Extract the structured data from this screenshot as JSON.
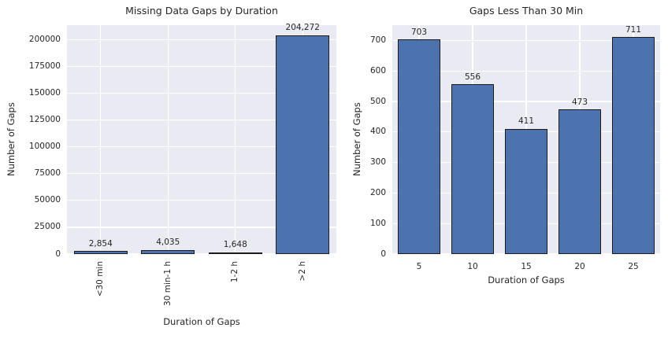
{
  "style": {
    "figure_bg": "#ffffff",
    "plot_bg": "#eaeaf2",
    "grid_color": "#ffffff",
    "bar_fill": "#4c72b0",
    "bar_edge": "#1c1c1c",
    "text_color": "#262626"
  },
  "chart_data": [
    {
      "type": "bar",
      "title": "Missing Data Gaps by Duration",
      "xlabel": "Duration of Gaps",
      "ylabel": "Number of Gaps",
      "categories": [
        "<30 min",
        "30 min-1 h",
        "1-2 h",
        ">2 h"
      ],
      "values": [
        2854,
        4035,
        1648,
        204272
      ],
      "bar_labels": [
        "2,854",
        "4,035",
        "1,648",
        "204,272"
      ],
      "yticks": [
        0,
        25000,
        50000,
        75000,
        100000,
        125000,
        150000,
        175000,
        200000
      ],
      "ytick_labels": [
        "0",
        "25000",
        "50000",
        "75000",
        "100000",
        "125000",
        "150000",
        "175000",
        "200000"
      ],
      "ylim": [
        0,
        213500
      ],
      "xtick_rotation_deg": 90,
      "grid": true,
      "legend": false
    },
    {
      "type": "bar",
      "title": "Gaps Less Than 30 Min",
      "xlabel": "Duration of Gaps",
      "ylabel": "Number of Gaps",
      "categories": [
        "5",
        "10",
        "15",
        "20",
        "25"
      ],
      "values": [
        703,
        556,
        411,
        473,
        711
      ],
      "bar_labels": [
        "703",
        "556",
        "411",
        "473",
        "711"
      ],
      "yticks": [
        0,
        100,
        200,
        300,
        400,
        500,
        600,
        700
      ],
      "ytick_labels": [
        "0",
        "100",
        "200",
        "300",
        "400",
        "500",
        "600",
        "700"
      ],
      "ylim": [
        0,
        750
      ],
      "xtick_rotation_deg": 0,
      "grid": true,
      "legend": false
    }
  ]
}
